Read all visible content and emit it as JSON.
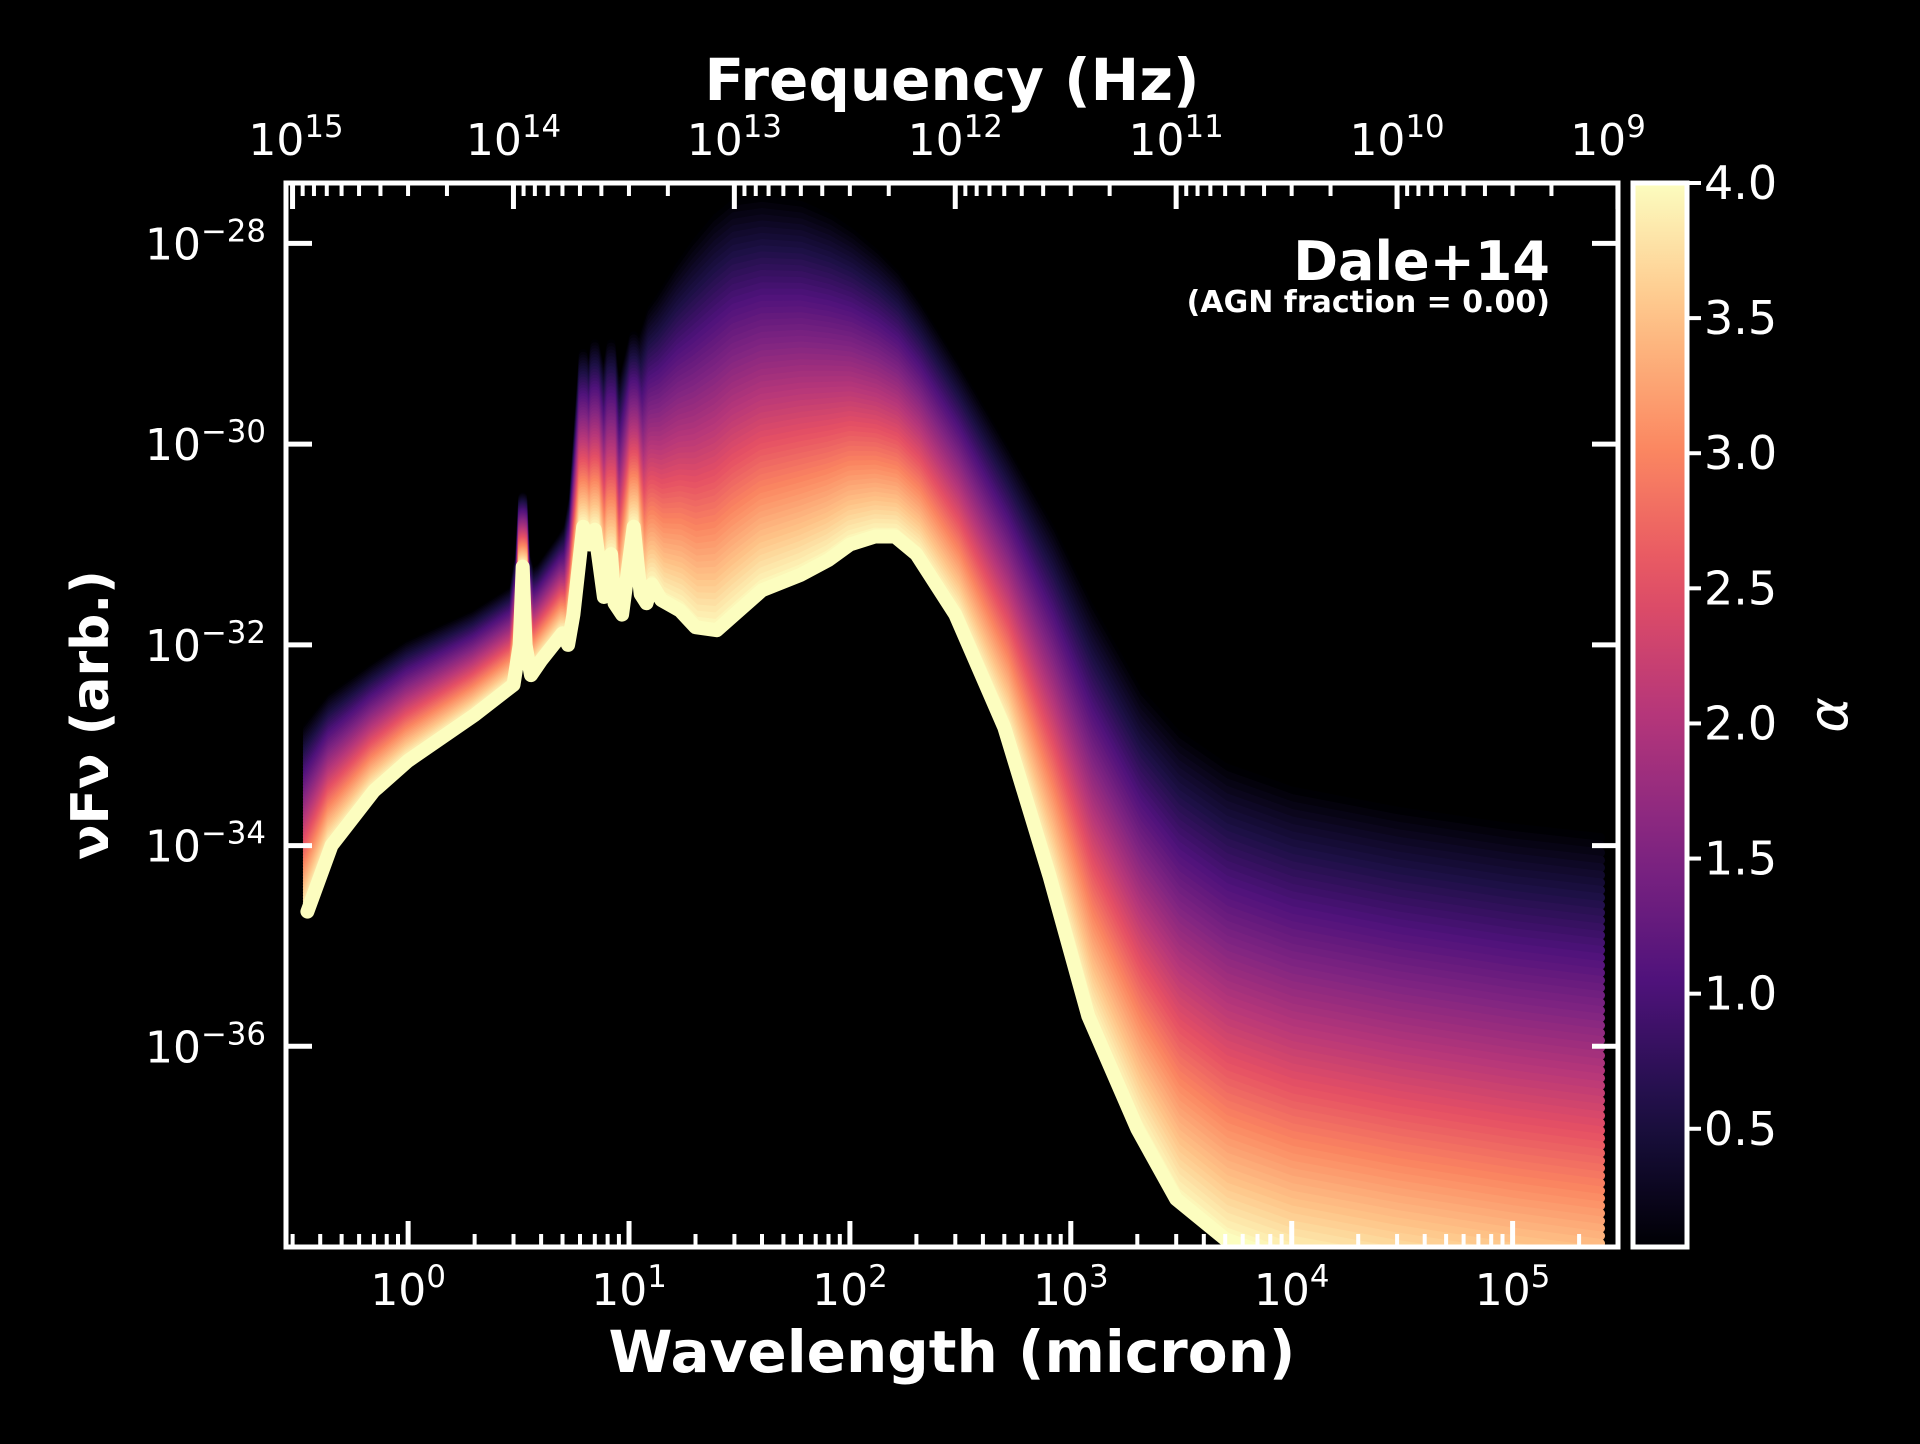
{
  "chart_data": {
    "type": "line",
    "title": "",
    "annotation": {
      "title": "Dale+14",
      "subtitle": "(AGN fraction = 0.00)"
    },
    "xlabel": "Wavelength (micron)",
    "x2label": "Frequency (Hz)",
    "ylabel": "νFν (arb.)",
    "xscale": "log",
    "yscale": "log",
    "xlim": [
      0.28,
      300000
    ],
    "ylim": [
      1e-38,
      4e-28
    ],
    "x_ticks": [
      {
        "value": 1,
        "label": "10",
        "exp": "0"
      },
      {
        "value": 10,
        "label": "10",
        "exp": "1"
      },
      {
        "value": 100,
        "label": "10",
        "exp": "2"
      },
      {
        "value": 1000,
        "label": "10",
        "exp": "3"
      },
      {
        "value": 10000,
        "label": "10",
        "exp": "4"
      },
      {
        "value": 100000,
        "label": "10",
        "exp": "5"
      }
    ],
    "x2_ticks": [
      {
        "value": 1000000000000000.0,
        "label": "10",
        "exp": "15"
      },
      {
        "value": 100000000000000.0,
        "label": "10",
        "exp": "14"
      },
      {
        "value": 10000000000000.0,
        "label": "10",
        "exp": "13"
      },
      {
        "value": 1000000000000.0,
        "label": "10",
        "exp": "12"
      },
      {
        "value": 100000000000.0,
        "label": "10",
        "exp": "11"
      },
      {
        "value": 10000000000.0,
        "label": "10",
        "exp": "10"
      },
      {
        "value": 1000000000.0,
        "label": "10",
        "exp": "9"
      }
    ],
    "y_ticks": [
      {
        "value": 1e-28,
        "label": "10",
        "exp": "−28"
      },
      {
        "value": 1e-30,
        "label": "10",
        "exp": "−30"
      },
      {
        "value": 1e-32,
        "label": "10",
        "exp": "−32"
      },
      {
        "value": 1e-34,
        "label": "10",
        "exp": "−34"
      },
      {
        "value": 1e-36,
        "label": "10",
        "exp": "−36"
      }
    ],
    "colorbar": {
      "label": "α",
      "colormap": "magma",
      "range": [
        0.0625,
        4.0
      ],
      "ticks": [
        "0.5",
        "1.0",
        "1.5",
        "2.0",
        "2.5",
        "3.0",
        "3.5",
        "4.0"
      ]
    },
    "colormap_stops": [
      "#000004",
      "#1c1044",
      "#4f127b",
      "#812581",
      "#b5367a",
      "#e55064",
      "#fb8761",
      "#fec287",
      "#fcfdbf"
    ],
    "series_family": {
      "parameter": "α",
      "alpha_min": 0.0625,
      "alpha_max": 4.0,
      "count": 64,
      "x": [
        0.35,
        0.45,
        0.7,
        1.0,
        2.0,
        3.0,
        3.2,
        3.3,
        3.4,
        3.6,
        4.0,
        5.0,
        5.3,
        5.6,
        6.2,
        6.6,
        7.0,
        7.7,
        8.3,
        8.6,
        9.3,
        10.5,
        11.3,
        12.0,
        12.7,
        14.0,
        17.0,
        20.0,
        25.0,
        30.0,
        40.0,
        60.0,
        80.0,
        100.0,
        130.0,
        160.0,
        200.0,
        300.0,
        500.0,
        800.0,
        1200.0,
        2000.0,
        3000.0,
        5000.0,
        10000.0,
        30000.0,
        100000.0,
        250000.0
      ],
      "y_alpha_max": [
        2.2e-35,
        1e-34,
        3.5e-34,
        7e-34,
        2e-33,
        4e-33,
        1e-32,
        6e-32,
        1e-32,
        5e-33,
        7e-33,
        1.3e-32,
        1e-32,
        2e-32,
        1.5e-31,
        1e-31,
        1.4e-31,
        3e-32,
        8e-32,
        2.6e-32,
        2e-32,
        1.5e-31,
        3.2e-32,
        2.6e-32,
        4e-32,
        2.8e-32,
        2.2e-32,
        1.5e-32,
        1.4e-32,
        2e-32,
        3.5e-32,
        5e-32,
        7e-32,
        1e-31,
        1.2e-31,
        1.2e-31,
        8e-32,
        2e-32,
        1.5e-33,
        5e-35,
        2e-36,
        1.5e-37,
        3e-38,
        1.2e-38,
        7e-39,
        4.5e-39,
        3e-39,
        2.3e-39
      ],
      "y_alpha_min": [
        1.5e-33,
        3e-33,
        6e-33,
        1e-32,
        2e-32,
        3.5e-32,
        8e-32,
        3e-31,
        8e-32,
        5e-32,
        6e-32,
        1.2e-31,
        1.5e-31,
        3e-31,
        8e-30,
        4e-30,
        1e-29,
        4e-30,
        1e-29,
        5e-30,
        4e-30,
        1.2e-29,
        1e-29,
        1.5e-29,
        2.2e-29,
        3e-29,
        6e-29,
        1e-28,
        1.8e-28,
        2.5e-28,
        2.7e-28,
        2.4e-28,
        1.8e-28,
        1.3e-28,
        8e-29,
        5e-29,
        2.5e-29,
        6e-30,
        9e-31,
        1.5e-31,
        2.5e-32,
        3.5e-33,
        1.3e-33,
        6e-34,
        3.5e-34,
        2.2e-34,
        1.5e-34,
        1.2e-34
      ]
    }
  }
}
